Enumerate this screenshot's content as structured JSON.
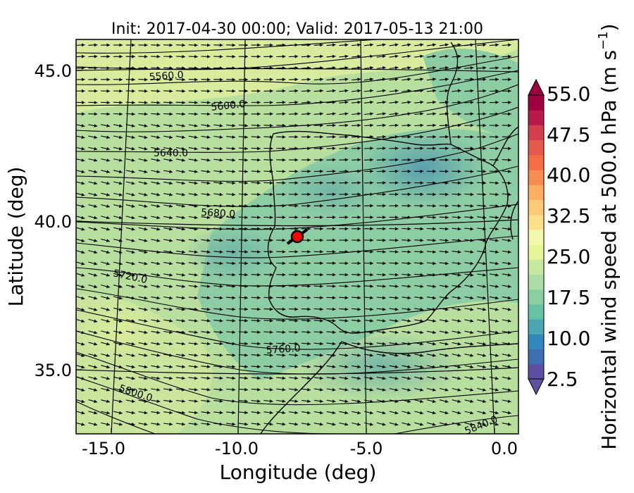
{
  "title": "Init: 2017-04-30 00:00; Valid: 2017-05-13 21:00",
  "x_axis": {
    "label": "Longitude (deg)",
    "ticks": [
      "-15.0",
      "-10.0",
      "-5.0",
      "0.0"
    ]
  },
  "y_axis": {
    "label": "Latitude (deg)",
    "ticks": [
      "45.0",
      "40.0",
      "35.0"
    ]
  },
  "colorbar": {
    "label": "Horizontal wind speed at 500.0 hPa (m s",
    "label_superscript": "−1",
    "label_close": ")",
    "ticks": [
      "55.0",
      "47.5",
      "40.0",
      "32.5",
      "25.0",
      "17.5",
      "10.0",
      "2.5"
    ],
    "colors": [
      "#5e4fa2",
      "#3f6fb0",
      "#3288bd",
      "#4aa6b2",
      "#66c2a5",
      "#8acfa4",
      "#abdda4",
      "#c6e89f",
      "#e6f598",
      "#f3f8ac",
      "#fee08b",
      "#fdc877",
      "#fdae61",
      "#f88d52",
      "#f46d43",
      "#e45b4c",
      "#d53e4f",
      "#b81b4b",
      "#9e0142"
    ]
  },
  "contour_labels": [
    "5560.0",
    "5600.0",
    "5640.0",
    "5680.0",
    "5720.0",
    "5760.0",
    "5800.0",
    "5840.0"
  ],
  "marker_color": "#ff0000"
}
